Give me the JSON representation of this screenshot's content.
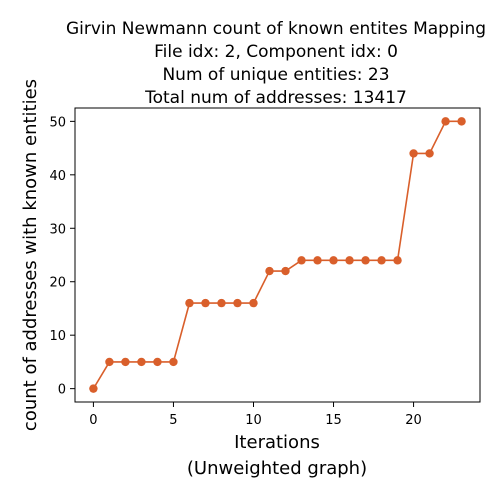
{
  "chart_data": {
    "type": "line",
    "title_lines": [
      "Girvin Newmann count of known entites Mapping",
      "File idx: 2, Component idx: 0",
      "Num of unique entities: 23",
      "Total num of addresses: 13417"
    ],
    "xlabel_lines": [
      "Iterations",
      "(Unweighted graph)"
    ],
    "ylabel": "count of addresses with known entities",
    "x": [
      0,
      1,
      2,
      3,
      4,
      5,
      6,
      7,
      8,
      9,
      10,
      11,
      12,
      13,
      14,
      15,
      16,
      17,
      18,
      19,
      20,
      21,
      22,
      23
    ],
    "series": [
      {
        "values": [
          0,
          5,
          5,
          5,
          5,
          5,
          16,
          16,
          16,
          16,
          16,
          22,
          22,
          24,
          24,
          24,
          24,
          24,
          24,
          24,
          44,
          44,
          50,
          50
        ],
        "color": "#d95f2b"
      }
    ],
    "xticks": [
      0,
      5,
      10,
      15,
      20
    ],
    "yticks": [
      0,
      10,
      20,
      30,
      40,
      50
    ],
    "xlim": [
      -1.15,
      24.15
    ],
    "ylim": [
      -2.5,
      52.5
    ],
    "grid": false,
    "marker": "circle"
  }
}
